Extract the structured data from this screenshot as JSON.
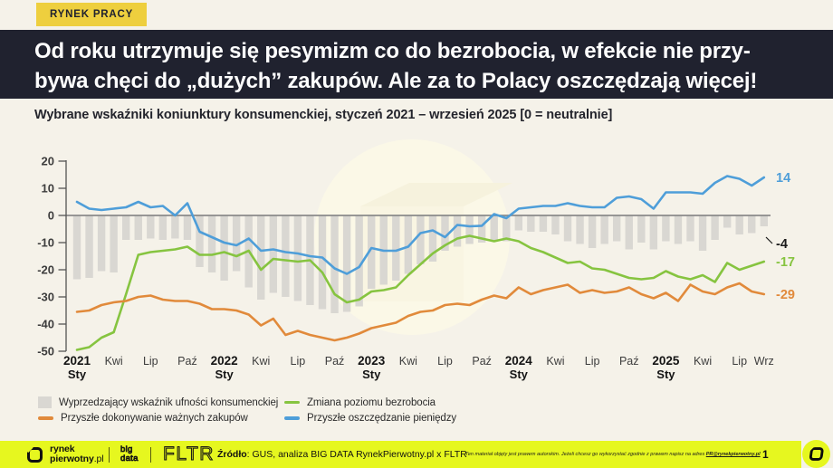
{
  "badge": "RYNEK PRACY",
  "title": {
    "line1": "Od roku utrzymuje się pesymizm co do bezrobocia, w efekcie nie przy-",
    "line2": "bywa chęci do „dużych” zakupów. Ale za to Polacy oszczędzają więcej!"
  },
  "subtitle": "Wybrane wskaźniki koniunktury konsumenckiej, styczeń 2021 – wrzesień 2025 [0 = neutralnie]",
  "colors": {
    "background": "#f5f2e9",
    "header_bg": "#20222f",
    "badge_bg": "#eecf3e",
    "footer_bg": "#e6f71f",
    "bar": "#d9d7d2",
    "green": "#86c440",
    "orange": "#e18a3b",
    "blue": "#4e9ed9",
    "zero_line": "#8a8a8a",
    "axis": "#555555"
  },
  "chart_data": {
    "type": "bar",
    "note": "monthly values Jan 2021 - Sep 2025, mixed bar + 3 line series",
    "ylim": [
      -50,
      20
    ],
    "y_ticks": [
      20,
      10,
      0,
      -10,
      -20,
      -30,
      -40,
      -50
    ],
    "x_tick_labels": [
      {
        "index": 0,
        "line1": "2021",
        "line2": "Sty",
        "bold": true
      },
      {
        "index": 3,
        "line1": "Kwi"
      },
      {
        "index": 6,
        "line1": "Lip"
      },
      {
        "index": 9,
        "line1": "Paź"
      },
      {
        "index": 12,
        "line1": "2022",
        "line2": "Sty",
        "bold": true
      },
      {
        "index": 15,
        "line1": "Kwi"
      },
      {
        "index": 18,
        "line1": "Lip"
      },
      {
        "index": 21,
        "line1": "Paź"
      },
      {
        "index": 24,
        "line1": "2023",
        "line2": "Sty",
        "bold": true
      },
      {
        "index": 27,
        "line1": "Kwi"
      },
      {
        "index": 30,
        "line1": "Lip"
      },
      {
        "index": 33,
        "line1": "Paź"
      },
      {
        "index": 36,
        "line1": "2024",
        "line2": "Sty",
        "bold": true
      },
      {
        "index": 39,
        "line1": "Kwi"
      },
      {
        "index": 42,
        "line1": "Lip"
      },
      {
        "index": 45,
        "line1": "Paź"
      },
      {
        "index": 48,
        "line1": "2025",
        "line2": "Sty",
        "bold": true
      },
      {
        "index": 51,
        "line1": "Kwi"
      },
      {
        "index": 54,
        "line1": "Lip"
      },
      {
        "index": 56,
        "line1": "Wrz"
      }
    ],
    "series": [
      {
        "name": "Wyprzedzający wskaźnik ufności konsumenckiej",
        "type": "bar",
        "color": "#d9d7d2",
        "end_label": "-4",
        "end_label_color": "#1a1a1a",
        "values": [
          -23.5,
          -23,
          -20.5,
          -21,
          -9,
          -9,
          -8.5,
          -9,
          -8.5,
          -9,
          -19,
          -21,
          -24,
          -20.5,
          -26.5,
          -31,
          -28.5,
          -30,
          -31.5,
          -33,
          -34.5,
          -36,
          -35.5,
          -33.5,
          -27,
          -25.5,
          -24,
          -21.5,
          -18,
          -17,
          -13,
          -11.5,
          -10.5,
          -10,
          -9.5,
          -9.5,
          -5.5,
          -6,
          -6,
          -7,
          -9.5,
          -10.5,
          -12,
          -10.5,
          -9.5,
          -12.5,
          -10,
          -12.5,
          -9.5,
          -10.5,
          -9.5,
          -13,
          -9,
          -4.5,
          -7,
          -6.5,
          -4
        ]
      },
      {
        "name": "Zmiana poziomu bezrobocia",
        "type": "line",
        "color": "#86c440",
        "end_label": "-17",
        "end_label_color": "#86c440",
        "values": [
          -49.5,
          -48.5,
          -45,
          -43,
          -29,
          -14.5,
          -13.5,
          -13,
          -12.5,
          -11.5,
          -14.5,
          -14.5,
          -13.5,
          -15,
          -13,
          -20,
          -16,
          -16.5,
          -17,
          -16.5,
          -21,
          -29,
          -32,
          -31,
          -28,
          -27.5,
          -26.5,
          -22,
          -18,
          -14,
          -11,
          -8.5,
          -7.5,
          -8.5,
          -9.5,
          -8.5,
          -9.5,
          -12,
          -13.5,
          -15.5,
          -17.5,
          -17,
          -19.5,
          -20,
          -21.5,
          -23,
          -23.5,
          -23,
          -20.5,
          -22.5,
          -23.5,
          -22,
          -24.5,
          -17.5,
          -20,
          -18.5,
          -17
        ]
      },
      {
        "name": "Przyszłe dokonywanie ważnych zakupów",
        "type": "line",
        "color": "#e18a3b",
        "end_label": "-29",
        "end_label_color": "#e18a3b",
        "values": [
          -35.5,
          -35,
          -33,
          -32,
          -31.5,
          -30,
          -29.5,
          -31,
          -31.5,
          -31.5,
          -32.5,
          -34.5,
          -34.5,
          -35,
          -36.5,
          -40.5,
          -38,
          -44,
          -42.5,
          -44,
          -45,
          -46,
          -45,
          -43.5,
          -41.5,
          -40.5,
          -39.5,
          -37,
          -35.5,
          -35,
          -33,
          -32.5,
          -33,
          -31,
          -29.5,
          -30.5,
          -26.5,
          -29,
          -27.5,
          -26.5,
          -25.5,
          -28.5,
          -27.5,
          -28.5,
          -28,
          -26.5,
          -29,
          -30.5,
          -28.5,
          -31.5,
          -25.5,
          -28,
          -29,
          -26.5,
          -25,
          -28,
          -29
        ]
      },
      {
        "name": "Przyszłe oszczędzanie pieniędzy",
        "type": "line",
        "color": "#4e9ed9",
        "end_label": "14",
        "end_label_color": "#4e9ed9",
        "values": [
          5,
          2.5,
          2,
          2.5,
          3,
          5,
          3,
          3.5,
          0,
          4.5,
          -6,
          -8,
          -10,
          -11,
          -8.5,
          -13,
          -12.5,
          -13.5,
          -14,
          -15,
          -15.5,
          -19.5,
          -21.5,
          -19,
          -12,
          -13,
          -13,
          -11.5,
          -6.5,
          -5.5,
          -8,
          -3.5,
          -4,
          -3.8,
          0.5,
          -1,
          2.5,
          3,
          3.5,
          3.5,
          4.5,
          3.5,
          3,
          3,
          6.5,
          7,
          6,
          2.5,
          8.5,
          8.5,
          8.5,
          8,
          12,
          14.5,
          13.5,
          11,
          14
        ]
      }
    ]
  },
  "footer": {
    "logo1_line1": "rynek",
    "logo1_line2": "pierwotny",
    "logo1_suffix": ".pl",
    "logo2_line1": "big",
    "logo2_line2": "data",
    "logo3": "FLTR",
    "source_label": "Źródło",
    "source_rest": ": GUS, analiza BIG DATA RynekPierwotny.pl x FLTR",
    "disclaimer": "Ten materiał objęty jest prawem autorskim. Jeżeli chcesz go wykorzystać zgodnie z prawem napisz na adres ",
    "disclaimer_link": "PR@rynekpierwotny.pl",
    "page_number": "1"
  }
}
